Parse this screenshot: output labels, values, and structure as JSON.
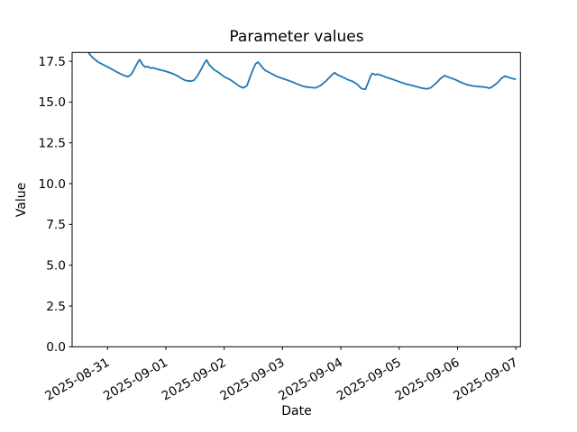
{
  "chart_data": {
    "type": "line",
    "title": "Parameter values",
    "xlabel": "Date",
    "ylabel": "Value",
    "legend": null,
    "grid": false,
    "background": "#ffffff",
    "axes_color": "#000000",
    "x_axis": {
      "unit": "days since 2025-08-31 00:00",
      "tick_positions": [
        0,
        1,
        2,
        3,
        4,
        5,
        6,
        7
      ],
      "tick_labels": [
        "2025-08-31",
        "2025-09-01",
        "2025-09-02",
        "2025-09-03",
        "2025-09-04",
        "2025-09-05",
        "2025-09-06",
        "2025-09-07"
      ],
      "tick_label_rotation_deg": 30,
      "lim": [
        -0.607,
        7.079
      ]
    },
    "y_axis": {
      "tick_values": [
        0,
        2.5,
        5,
        7.5,
        10,
        12.5,
        15,
        17.5
      ],
      "tick_labels": [
        "0.0",
        "2.5",
        "5.0",
        "7.5",
        "10.0",
        "12.5",
        "15.0",
        "17.5"
      ],
      "lim": [
        0,
        18.04
      ]
    },
    "series": [
      {
        "name": "Parameter values",
        "color": "#1f77b4",
        "points": [
          [
            -0.34,
            18.12
          ],
          [
            -0.3,
            17.9
          ],
          [
            -0.24,
            17.68
          ],
          [
            -0.16,
            17.45
          ],
          [
            -0.07,
            17.28
          ],
          [
            0.03,
            17.1
          ],
          [
            0.12,
            16.92
          ],
          [
            0.21,
            16.75
          ],
          [
            0.29,
            16.62
          ],
          [
            0.35,
            16.56
          ],
          [
            0.41,
            16.7
          ],
          [
            0.47,
            17.1
          ],
          [
            0.52,
            17.45
          ],
          [
            0.55,
            17.6
          ],
          [
            0.6,
            17.3
          ],
          [
            0.64,
            17.15
          ],
          [
            0.69,
            17.17
          ],
          [
            0.74,
            17.08
          ],
          [
            0.78,
            17.1
          ],
          [
            0.85,
            17.02
          ],
          [
            0.94,
            16.94
          ],
          [
            1.03,
            16.85
          ],
          [
            1.12,
            16.74
          ],
          [
            1.2,
            16.6
          ],
          [
            1.28,
            16.42
          ],
          [
            1.34,
            16.32
          ],
          [
            1.42,
            16.28
          ],
          [
            1.48,
            16.33
          ],
          [
            1.54,
            16.6
          ],
          [
            1.62,
            17.1
          ],
          [
            1.66,
            17.4
          ],
          [
            1.7,
            17.58
          ],
          [
            1.74,
            17.3
          ],
          [
            1.82,
            17.0
          ],
          [
            1.91,
            16.8
          ],
          [
            2.0,
            16.55
          ],
          [
            2.1,
            16.38
          ],
          [
            2.19,
            16.15
          ],
          [
            2.27,
            15.95
          ],
          [
            2.33,
            15.87
          ],
          [
            2.39,
            16.0
          ],
          [
            2.45,
            16.6
          ],
          [
            2.5,
            17.05
          ],
          [
            2.54,
            17.35
          ],
          [
            2.58,
            17.45
          ],
          [
            2.62,
            17.28
          ],
          [
            2.66,
            17.1
          ],
          [
            2.7,
            16.95
          ],
          [
            2.79,
            16.78
          ],
          [
            2.9,
            16.57
          ],
          [
            3.02,
            16.42
          ],
          [
            3.15,
            16.26
          ],
          [
            3.26,
            16.09
          ],
          [
            3.37,
            15.95
          ],
          [
            3.47,
            15.9
          ],
          [
            3.57,
            15.87
          ],
          [
            3.66,
            16.03
          ],
          [
            3.75,
            16.31
          ],
          [
            3.84,
            16.64
          ],
          [
            3.89,
            16.8
          ],
          [
            3.95,
            16.66
          ],
          [
            4.03,
            16.53
          ],
          [
            4.12,
            16.37
          ],
          [
            4.2,
            16.27
          ],
          [
            4.28,
            16.09
          ],
          [
            4.35,
            15.83
          ],
          [
            4.42,
            15.78
          ],
          [
            4.46,
            16.13
          ],
          [
            4.51,
            16.6
          ],
          [
            4.54,
            16.76
          ],
          [
            4.59,
            16.67
          ],
          [
            4.63,
            16.71
          ],
          [
            4.7,
            16.63
          ],
          [
            4.77,
            16.53
          ],
          [
            4.88,
            16.4
          ],
          [
            4.99,
            16.26
          ],
          [
            5.11,
            16.11
          ],
          [
            5.24,
            16.0
          ],
          [
            5.37,
            15.87
          ],
          [
            5.47,
            15.81
          ],
          [
            5.54,
            15.87
          ],
          [
            5.64,
            16.18
          ],
          [
            5.71,
            16.45
          ],
          [
            5.78,
            16.62
          ],
          [
            5.85,
            16.52
          ],
          [
            5.95,
            16.39
          ],
          [
            6.04,
            16.24
          ],
          [
            6.15,
            16.08
          ],
          [
            6.26,
            15.99
          ],
          [
            6.36,
            15.95
          ],
          [
            6.47,
            15.92
          ],
          [
            6.55,
            15.85
          ],
          [
            6.61,
            15.97
          ],
          [
            6.69,
            16.2
          ],
          [
            6.75,
            16.45
          ],
          [
            6.81,
            16.59
          ],
          [
            6.87,
            16.52
          ],
          [
            6.94,
            16.44
          ],
          [
            6.99,
            16.4
          ]
        ]
      }
    ]
  }
}
